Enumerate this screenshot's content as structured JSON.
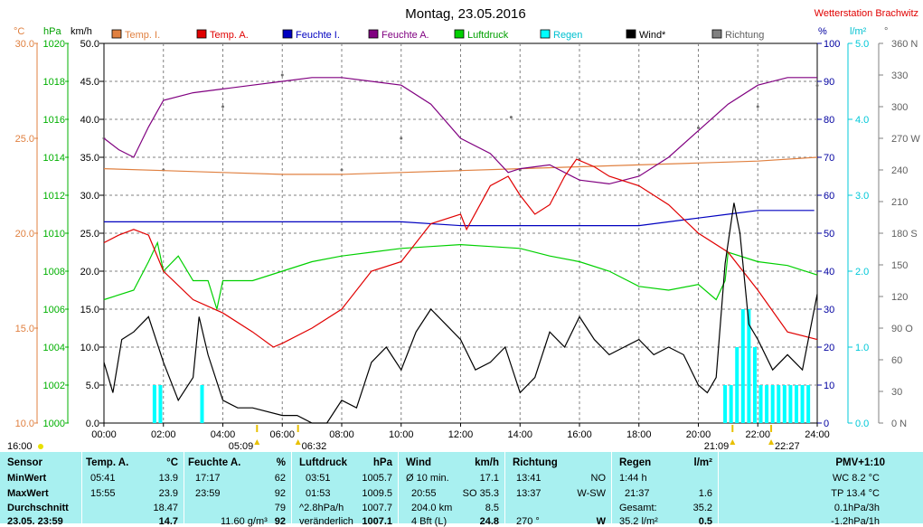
{
  "page_title": "Montag, 23.05.2016",
  "station": "Wetterstation Brachwitz",
  "unit_labels": {
    "temp": "°C",
    "pressure": "hPa",
    "wind": "km/h",
    "humidity": "%",
    "rain": "l/m²",
    "direction": "°"
  },
  "colors": {
    "temp_axis": "#e08040",
    "pressure_axis": "#00b000",
    "humidity_axis": "#0000a0",
    "rain_axis": "#00c8d8",
    "temp_in": "#e08040",
    "temp_out": "#e00000",
    "hum_in": "#0000c0",
    "hum_out": "#800080",
    "pressure": "#00d000",
    "rain": "#00ffff",
    "wind": "#000000",
    "direction": "#707070",
    "table_bg": "#a8f0f0",
    "station": "#e00000"
  },
  "legend": [
    {
      "label": "Temp. I.",
      "color": "#e08040",
      "text_color": "#e08040"
    },
    {
      "label": "Temp. A.",
      "color": "#e00000",
      "text_color": "#e00000"
    },
    {
      "label": "Feuchte I.",
      "color": "#0000c0",
      "text_color": "#0000c0"
    },
    {
      "label": "Feuchte A.",
      "color": "#800080",
      "text_color": "#800080"
    },
    {
      "label": "Luftdruck",
      "color": "#00d000",
      "text_color": "#00a000"
    },
    {
      "label": "Regen",
      "color": "#00ffff",
      "text_color": "#00c0d0"
    },
    {
      "label": "Wind*",
      "color": "#000000",
      "text_color": "#000000"
    },
    {
      "label": "Richtung",
      "color": "#808080",
      "text_color": "#606060"
    }
  ],
  "axes": {
    "temp_ticks": [
      "30.0",
      "25.0",
      "20.0",
      "15.0",
      "10.0"
    ],
    "pressure_ticks": [
      "1020",
      "1018",
      "1016",
      "1014",
      "1012",
      "1010",
      "1008",
      "1006",
      "1004",
      "1002",
      "1000"
    ],
    "wind_ticks": [
      "50.0",
      "45.0",
      "40.0",
      "35.0",
      "30.0",
      "25.0",
      "20.0",
      "15.0",
      "10.0",
      "5.0",
      "0.0"
    ],
    "humidity_ticks": [
      "100",
      "90",
      "80",
      "70",
      "60",
      "50",
      "40",
      "30",
      "20",
      "10",
      "0"
    ],
    "rain_ticks": [
      "5.0",
      "4.0",
      "3.0",
      "2.0",
      "1.0",
      "0.0"
    ],
    "direction_ticks": [
      "360 N",
      "330",
      "300",
      "270 W",
      "240",
      "210",
      "180 S",
      "150",
      "120",
      "90 O",
      "60",
      "30",
      "0 N"
    ],
    "x_ticks": [
      "00:00",
      "02:00",
      "04:00",
      "06:00",
      "08:00",
      "10:00",
      "12:00",
      "14:00",
      "16:00",
      "18:00",
      "20:00",
      "22:00",
      "24:00"
    ]
  },
  "markers": {
    "daylight": "16:00",
    "sunrise": "05:09",
    "sunrise2": "06:32",
    "sunset": "21:09",
    "sunset2": "22:27"
  },
  "chart_data": {
    "type": "line",
    "title": "Montag, 23.05.2016",
    "x_unit": "hours",
    "xlim": [
      0,
      24
    ],
    "series": [
      {
        "name": "Temp. I.",
        "axis": "temp °C",
        "ylim": [
          10,
          30
        ],
        "x": [
          0,
          2,
          4,
          6,
          8,
          10,
          12,
          14,
          16,
          18,
          20,
          22,
          24
        ],
        "values": [
          23.4,
          23.3,
          23.2,
          23.1,
          23.1,
          23.2,
          23.3,
          23.4,
          23.5,
          23.6,
          23.7,
          23.8,
          24.0
        ]
      },
      {
        "name": "Temp. A.",
        "axis": "temp °C",
        "ylim": [
          10,
          30
        ],
        "x": [
          0,
          0.5,
          1,
          1.5,
          2,
          3,
          4,
          5,
          5.7,
          6,
          7,
          8,
          9,
          10,
          11,
          12,
          12.2,
          13,
          13.6,
          14,
          14.5,
          15,
          15.5,
          15.9,
          16.5,
          17,
          18,
          19,
          20,
          21,
          22,
          23,
          24
        ],
        "values": [
          19.5,
          19.9,
          20.2,
          19.9,
          18.0,
          16.5,
          15.8,
          14.8,
          14.0,
          14.2,
          15.0,
          16.0,
          18.0,
          18.5,
          20.5,
          21.0,
          20.2,
          22.5,
          23.0,
          22.0,
          21.0,
          21.5,
          23.0,
          23.9,
          23.5,
          23.0,
          22.5,
          21.5,
          20.0,
          19.0,
          17.0,
          14.8,
          14.4
        ]
      },
      {
        "name": "Feuchte I.",
        "axis": "humidity %",
        "ylim": [
          0,
          100
        ],
        "x": [
          0,
          2,
          4,
          6,
          8,
          10,
          12,
          14,
          16,
          18,
          19,
          20,
          21,
          22,
          23.9
        ],
        "values": [
          53,
          53,
          53,
          53,
          53,
          53,
          52,
          52,
          52,
          52,
          53,
          54,
          55,
          56,
          56
        ]
      },
      {
        "name": "Feuchte A.",
        "axis": "humidity %",
        "ylim": [
          0,
          100
        ],
        "x": [
          0,
          0.5,
          1,
          1.5,
          2,
          3,
          4,
          5,
          6,
          7,
          7.5,
          8,
          9,
          10,
          11,
          12,
          13,
          13.6,
          14,
          15,
          16,
          17,
          18,
          19,
          20,
          21,
          22,
          23,
          24
        ],
        "values": [
          75,
          72,
          70,
          78,
          85,
          87,
          88,
          89,
          90,
          91,
          91,
          91,
          90,
          89,
          84,
          75,
          71,
          66,
          67,
          68,
          64,
          63,
          65,
          70,
          77,
          84,
          89,
          91,
          91
        ]
      },
      {
        "name": "Luftdruck",
        "axis": "pressure hPa",
        "ylim": [
          1000,
          1020
        ],
        "x": [
          0,
          1,
          1.5,
          1.8,
          2,
          2.5,
          3,
          3.5,
          3.8,
          4,
          5,
          6,
          7,
          8,
          9,
          10,
          11,
          12,
          13,
          14,
          15,
          16,
          17,
          18,
          19,
          20,
          20.6,
          20.9,
          21,
          22,
          23,
          24
        ],
        "values": [
          1006.5,
          1007.0,
          1008.5,
          1009.5,
          1008.0,
          1008.8,
          1007.5,
          1007.5,
          1006.0,
          1007.5,
          1007.5,
          1008.0,
          1008.5,
          1008.8,
          1009.0,
          1009.2,
          1009.3,
          1009.4,
          1009.3,
          1009.2,
          1008.8,
          1008.5,
          1008.0,
          1007.2,
          1007.0,
          1007.3,
          1006.5,
          1007.5,
          1009.0,
          1008.5,
          1008.3,
          1007.8
        ]
      },
      {
        "name": "Wind*",
        "axis": "wind km/h",
        "ylim": [
          0,
          50
        ],
        "x": [
          0,
          0.3,
          0.6,
          1,
          1.5,
          2,
          2.5,
          3,
          3.2,
          3.5,
          4,
          4.5,
          5,
          6,
          6.5,
          7,
          7.5,
          8,
          8.5,
          9,
          9.5,
          10,
          10.5,
          11,
          11.5,
          12,
          12.5,
          13,
          13.5,
          14,
          14.5,
          15,
          15.5,
          16,
          16.5,
          17,
          17.5,
          18,
          18.5,
          19,
          19.5,
          20,
          20.3,
          20.6,
          20.9,
          21.2,
          21.4,
          21.7,
          22,
          22.5,
          23,
          23.5,
          24
        ],
        "values": [
          8,
          4,
          11,
          12,
          14,
          8,
          3,
          6,
          14,
          9,
          3,
          2,
          2,
          1,
          1,
          0,
          0,
          3,
          2,
          8,
          10,
          7,
          12,
          15,
          13,
          11,
          7,
          8,
          10,
          4,
          6,
          12,
          10,
          14,
          11,
          9,
          10,
          11,
          9,
          10,
          9,
          5,
          4,
          6,
          21,
          29,
          25,
          13,
          11,
          7,
          9,
          7,
          17
        ]
      },
      {
        "name": "Regen",
        "axis": "rain l/m²",
        "ylim": [
          0,
          5
        ],
        "x": [
          1.7,
          1.9,
          3.3,
          20.9,
          21.1,
          21.3,
          21.5,
          21.7,
          21.9,
          22.1,
          22.3,
          22.5,
          22.7,
          22.9,
          23.1,
          23.3,
          23.5,
          23.7
        ],
        "values": [
          0.5,
          0.5,
          0.5,
          0.5,
          0.5,
          1.0,
          1.5,
          1.5,
          1.0,
          0.5,
          0.5,
          0.5,
          0.5,
          0.5,
          0.5,
          0.5,
          0.5,
          0.5
        ]
      },
      {
        "name": "Richtung",
        "axis": "direction °",
        "ylim": [
          0,
          360
        ],
        "x": [
          0,
          2,
          4,
          6,
          8,
          10,
          12,
          13.7,
          14,
          16,
          18,
          20,
          22,
          24
        ],
        "values": [
          270,
          240,
          300,
          330,
          240,
          270,
          240,
          290,
          240,
          250,
          240,
          280,
          300,
          320
        ]
      }
    ]
  },
  "table": {
    "row_labels": [
      "Sensor",
      "MinWert",
      "MaxWert",
      "Durchschnitt",
      "23.05. 23:59"
    ],
    "temp_a": {
      "header": "Temp. A.",
      "unit": "°C",
      "rows": [
        [
          "05:41",
          "13.9"
        ],
        [
          "15:55",
          "23.9"
        ],
        [
          "",
          "18.47"
        ],
        [
          "",
          "14.7"
        ]
      ]
    },
    "feuchte_a": {
      "header": "Feuchte A.",
      "unit": "%",
      "rows": [
        [
          "17:17",
          "62"
        ],
        [
          "23:59",
          "92"
        ],
        [
          "",
          "79"
        ],
        [
          "11.60 g/m³",
          "92"
        ]
      ]
    },
    "luftdruck": {
      "header": "Luftdruck",
      "unit": "hPa",
      "rows": [
        [
          "03:51",
          "1005.7"
        ],
        [
          "01:53",
          "1009.5"
        ],
        [
          "^2.8hPa/h",
          "1007.7"
        ],
        [
          "veränderlich",
          "1007.1"
        ]
      ]
    },
    "wind": {
      "header": "Wind",
      "unit": "km/h",
      "rows": [
        [
          "Ø 10 min.",
          "17.1"
        ],
        [
          "20:55",
          "SO 35.3"
        ],
        [
          "204.0 km",
          "8.5"
        ],
        [
          "4 Bft (L)",
          "24.8"
        ]
      ]
    },
    "richtung": {
      "header": "Richtung",
      "unit": "",
      "rows": [
        [
          "13:41",
          "NO"
        ],
        [
          "13:37",
          "W-SW"
        ],
        [
          "",
          ""
        ],
        [
          "270 °",
          "W"
        ]
      ]
    },
    "regen": {
      "header": "Regen",
      "unit": "l/m²",
      "rows": [
        [
          "1:44 h",
          ""
        ],
        [
          "21:37",
          "1.6"
        ],
        [
          "Gesamt:",
          "35.2"
        ],
        [
          "35.2 l/m²",
          "0.5"
        ]
      ]
    },
    "pmv": {
      "header": "PMV+1:10",
      "rows": [
        "WC 8.2 °C",
        "TP 13.4 °C",
        "0.1hPa/3h",
        "-1.2hPa/1h"
      ]
    }
  }
}
